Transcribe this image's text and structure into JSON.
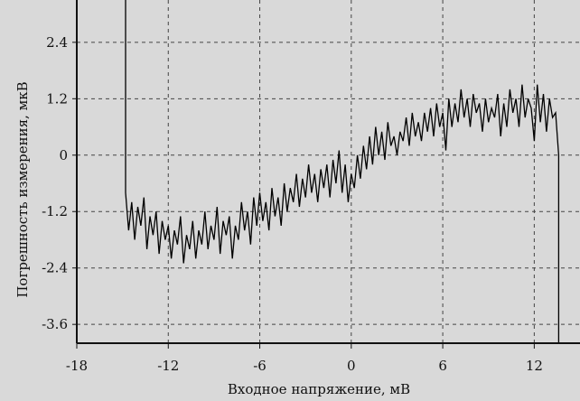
{
  "chart_data": {
    "type": "line",
    "title": "",
    "xlabel": "Входное напряжение, мВ",
    "ylabel": "Погрешность измерения, мкВ",
    "xlim": [
      -18,
      15
    ],
    "ylim": [
      -4.0,
      3.3
    ],
    "x_ticks": [
      -18,
      -12,
      -6,
      0,
      6,
      12
    ],
    "x_tick_labels": [
      "-18",
      "-12",
      "-6",
      "0",
      "6",
      "12"
    ],
    "y_ticks": [
      2.4,
      1.2,
      0,
      -1.2,
      -2.4,
      -3.6
    ],
    "y_tick_labels": [
      "2.4",
      "1.2",
      "0",
      "-1.2",
      "-2.4",
      "-3.6"
    ],
    "grid": true,
    "grid_style": "dashed",
    "background_color": "#d9d9d9",
    "line_color": "#000000",
    "series": [
      {
        "x": [
          -14.8,
          -14.6,
          -14.4,
          -14.2,
          -14.0,
          -13.8,
          -13.6,
          -13.4,
          -13.2,
          -13.0,
          -12.8,
          -12.6,
          -12.4,
          -12.2,
          -12.0,
          -11.8,
          -11.6,
          -11.4,
          -11.2,
          -11.0,
          -10.8,
          -10.6,
          -10.4,
          -10.2,
          -10.0,
          -9.8,
          -9.6,
          -9.4,
          -9.2,
          -9.0,
          -8.8,
          -8.6,
          -8.4,
          -8.2,
          -8.0,
          -7.8,
          -7.6,
          -7.4,
          -7.2,
          -7.0,
          -6.8,
          -6.6,
          -6.4,
          -6.2,
          -6.0,
          -5.8,
          -5.6,
          -5.4,
          -5.2,
          -5.0,
          -4.8,
          -4.6,
          -4.4,
          -4.2,
          -4.0,
          -3.8,
          -3.6,
          -3.4,
          -3.2,
          -3.0,
          -2.8,
          -2.6,
          -2.4,
          -2.2,
          -2.0,
          -1.8,
          -1.6,
          -1.4,
          -1.2,
          -1.0,
          -0.8,
          -0.6,
          -0.4,
          -0.2,
          0.0,
          0.2,
          0.4,
          0.6,
          0.8,
          1.0,
          1.2,
          1.4,
          1.6,
          1.8,
          2.0,
          2.2,
          2.4,
          2.6,
          2.8,
          3.0,
          3.2,
          3.4,
          3.6,
          3.8,
          4.0,
          4.2,
          4.4,
          4.6,
          4.8,
          5.0,
          5.2,
          5.4,
          5.6,
          5.8,
          6.0,
          6.2,
          6.4,
          6.6,
          6.8,
          7.0,
          7.2,
          7.4,
          7.6,
          7.8,
          8.0,
          8.2,
          8.4,
          8.6,
          8.8,
          9.0,
          9.2,
          9.4,
          9.6,
          9.8,
          10.0,
          10.2,
          10.4,
          10.6,
          10.8,
          11.0,
          11.2,
          11.4,
          11.6,
          11.8,
          12.0,
          12.2,
          12.4,
          12.6,
          12.8,
          13.0,
          13.2,
          13.4,
          13.6
        ],
        "y": [
          -0.8,
          -1.6,
          -1.0,
          -1.8,
          -1.1,
          -1.5,
          -0.9,
          -2.0,
          -1.3,
          -1.7,
          -1.2,
          -2.1,
          -1.4,
          -1.8,
          -1.5,
          -2.2,
          -1.6,
          -1.9,
          -1.3,
          -2.3,
          -1.7,
          -2.0,
          -1.4,
          -2.2,
          -1.6,
          -1.9,
          -1.2,
          -2.0,
          -1.5,
          -1.8,
          -1.1,
          -2.1,
          -1.4,
          -1.7,
          -1.3,
          -2.2,
          -1.5,
          -1.8,
          -1.0,
          -1.6,
          -1.2,
          -1.9,
          -0.9,
          -1.5,
          -0.8,
          -1.4,
          -1.0,
          -1.6,
          -0.7,
          -1.3,
          -0.9,
          -1.5,
          -0.6,
          -1.2,
          -0.7,
          -1.0,
          -0.4,
          -1.1,
          -0.5,
          -0.9,
          -0.2,
          -0.8,
          -0.4,
          -1.0,
          -0.3,
          -0.7,
          -0.2,
          -0.9,
          -0.1,
          -0.6,
          0.1,
          -0.8,
          -0.2,
          -1.0,
          -0.4,
          -0.7,
          0.0,
          -0.5,
          0.2,
          -0.3,
          0.4,
          -0.2,
          0.6,
          0.0,
          0.5,
          -0.1,
          0.7,
          0.2,
          0.4,
          0.0,
          0.5,
          0.3,
          0.8,
          0.2,
          0.9,
          0.4,
          0.7,
          0.3,
          0.9,
          0.5,
          1.0,
          0.4,
          1.1,
          0.6,
          0.9,
          0.1,
          1.2,
          0.6,
          1.1,
          0.7,
          1.4,
          0.8,
          1.2,
          0.6,
          1.3,
          0.9,
          1.1,
          0.5,
          1.2,
          0.7,
          1.0,
          0.8,
          1.3,
          0.4,
          1.1,
          0.6,
          1.4,
          0.9,
          1.2,
          0.6,
          1.5,
          0.8,
          1.2,
          1.0,
          0.3,
          1.5,
          0.7,
          1.3,
          0.5,
          1.2,
          0.8,
          0.9,
          0.0
        ],
        "start_spike_top": 3.3,
        "end_drop_bottom": -4.0
      }
    ]
  }
}
